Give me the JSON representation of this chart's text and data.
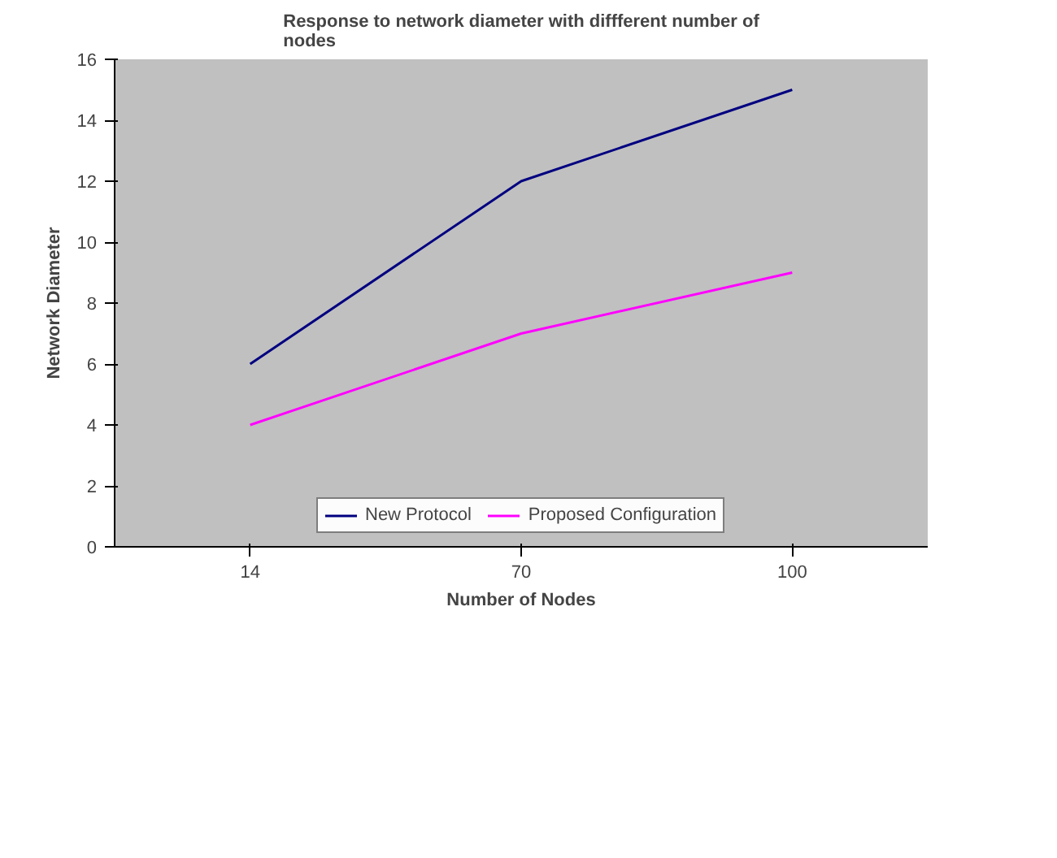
{
  "chart_data": {
    "type": "line",
    "title": "Response to network diameter with diffferent number of nodes",
    "xlabel": "Number of Nodes",
    "ylabel": "Network Diameter",
    "categories": [
      "14",
      "70",
      "100"
    ],
    "series": [
      {
        "name": "New Protocol",
        "color": "#000080",
        "values": [
          6,
          12,
          15
        ]
      },
      {
        "name": "Proposed Configuration",
        "color": "#ff00ff",
        "values": [
          4,
          7,
          9
        ]
      }
    ],
    "ylim": [
      0,
      16
    ],
    "yticks": [
      0,
      2,
      4,
      6,
      8,
      10,
      12,
      14,
      16
    ],
    "grid": false,
    "legend": "bottom",
    "marker": "none",
    "line_style": "solid"
  }
}
